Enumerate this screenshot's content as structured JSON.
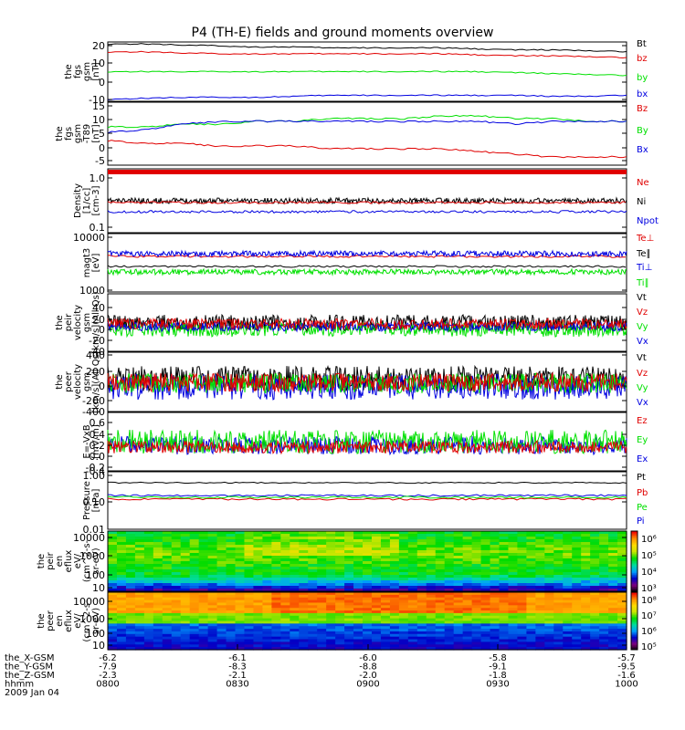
{
  "title": "P4 (TH-E) fields and ground moments overview",
  "colors": {
    "black": "#000000",
    "red": "#e00000",
    "green": "#00e000",
    "blue": "#0000e0"
  },
  "chart_data": [
    {
      "type": "line",
      "panel": "fgs_gsm",
      "ylabel": [
        "the",
        "fgs",
        "gsm",
        "[nT]"
      ],
      "ylim": [
        -10,
        20
      ],
      "yticks": [
        "20",
        "10",
        "0",
        "-10"
      ],
      "series": [
        {
          "name": "Bt",
          "color": "black",
          "values": [
            19,
            19,
            18.5,
            18,
            17.5,
            17.5,
            17,
            17,
            17,
            17,
            16.5,
            16,
            16,
            15.5,
            15
          ]
        },
        {
          "name": "bz",
          "color": "red",
          "values": [
            15,
            15,
            14.5,
            14,
            14,
            14,
            14,
            14,
            14,
            14,
            13.5,
            13,
            13,
            12.5,
            12
          ]
        },
        {
          "name": "by",
          "color": "green",
          "values": [
            5,
            5,
            5,
            5,
            5,
            5,
            5,
            5,
            5,
            5,
            5,
            4.5,
            4,
            3.5,
            3
          ]
        },
        {
          "name": "bx",
          "color": "blue",
          "values": [
            -9,
            -8.5,
            -8,
            -8,
            -8,
            -7.5,
            -7,
            -7,
            -7,
            -7,
            -7,
            -7,
            -7.5,
            -7.5,
            -7
          ]
        }
      ]
    },
    {
      "type": "line",
      "panel": "fgs_t89",
      "ylabel": [
        "the",
        "fgs",
        "gsm",
        "-T89",
        "[nT]"
      ],
      "ylim": [
        -7,
        16
      ],
      "yticks": [
        "15",
        "10",
        "5",
        "0",
        "-5"
      ],
      "series": [
        {
          "name": "Bz",
          "color": "red",
          "values": [
            2,
            1,
            1,
            0,
            0,
            0,
            -1,
            -1,
            -1,
            -1,
            -2,
            -3,
            -4,
            -4,
            -4
          ]
        },
        {
          "name": "By",
          "color": "green",
          "values": [
            7,
            7,
            8,
            8,
            9,
            9,
            10,
            10,
            10,
            11,
            11,
            10,
            10,
            9,
            9
          ]
        },
        {
          "name": "Bx",
          "color": "blue",
          "values": [
            5,
            6,
            8,
            9,
            9,
            9,
            9,
            9,
            9,
            9,
            9,
            8,
            9,
            9,
            9
          ]
        }
      ]
    },
    {
      "type": "line",
      "panel": "density",
      "ylabel": [
        "Density",
        "[1/cc]",
        "[cm-3]"
      ],
      "yticks": [
        "1.0",
        "0.1"
      ],
      "series": [
        {
          "name": "Ne",
          "color": "red"
        },
        {
          "name": "Ni",
          "color": "black"
        },
        {
          "name": "Npot",
          "color": "blue"
        }
      ]
    },
    {
      "type": "line",
      "panel": "temperature",
      "ylabel": [
        "magt3",
        "[eV]"
      ],
      "yticks": [
        "10000",
        "1000"
      ],
      "series": [
        {
          "name": "Te⊥",
          "color": "red"
        },
        {
          "name": "Te∥",
          "color": "black"
        },
        {
          "name": "Ti⊥",
          "color": "blue"
        },
        {
          "name": "Ti∥",
          "color": "green"
        }
      ]
    },
    {
      "type": "line",
      "panel": "peir_velocity",
      "ylabel": [
        "the",
        "peir",
        "velocity",
        "gsm",
        "[km/s](All Qs)"
      ],
      "ylim": [
        -40,
        40
      ],
      "yticks": [
        "40",
        "20",
        "0",
        "-20",
        "-40"
      ],
      "series": [
        {
          "name": "Vt",
          "color": "black"
        },
        {
          "name": "Vz",
          "color": "red"
        },
        {
          "name": "Vy",
          "color": "green"
        },
        {
          "name": "Vx",
          "color": "blue"
        }
      ]
    },
    {
      "type": "line",
      "panel": "peer_velocity",
      "ylabel": [
        "the",
        "peer",
        "velocity",
        "gsm",
        "[km/s](All Qs)"
      ],
      "ylim": [
        -400,
        400
      ],
      "yticks": [
        "400",
        "200",
        "0",
        "-200",
        "-400"
      ],
      "series": [
        {
          "name": "Vt",
          "color": "black"
        },
        {
          "name": "Vz",
          "color": "red"
        },
        {
          "name": "Vy",
          "color": "green"
        },
        {
          "name": "Vx",
          "color": "blue"
        }
      ]
    },
    {
      "type": "line",
      "panel": "exb",
      "ylabel": [
        "E=-VxB",
        "[mV/m]"
      ],
      "ylim": [
        -0.4,
        0.6
      ],
      "yticks": [
        "0.6",
        "0.4",
        "0.2",
        "0.0",
        "-0.2",
        "-0.4"
      ],
      "series": [
        {
          "name": "Ez",
          "color": "red"
        },
        {
          "name": "Ey",
          "color": "green"
        },
        {
          "name": "Ex",
          "color": "blue"
        }
      ]
    },
    {
      "type": "line",
      "panel": "pressure",
      "ylabel": [
        "Pressure",
        "[nPa]"
      ],
      "yticks": [
        "1.00",
        "0.10",
        "0.01"
      ],
      "series": [
        {
          "name": "Pt",
          "color": "black"
        },
        {
          "name": "Pb",
          "color": "red"
        },
        {
          "name": "Pe",
          "color": "green"
        },
        {
          "name": "Pi",
          "color": "blue"
        }
      ]
    },
    {
      "type": "heatmap",
      "panel": "peir_spec",
      "ylabel": [
        "the",
        "peir",
        "en",
        "eflux",
        "eV/",
        "(cm^2-s-",
        "sr-eV)"
      ],
      "yticks": [
        "10000",
        "1000",
        "100",
        "10"
      ],
      "colorbar_ticks": [
        "10⁶",
        "10⁵",
        "10⁴",
        "10³"
      ]
    },
    {
      "type": "heatmap",
      "panel": "peer_spec",
      "ylabel": [
        "the",
        "peer",
        "en",
        "eflux",
        "eV/",
        "(cm^2-s-",
        "sr-eV)"
      ],
      "yticks": [
        "10000",
        "1000",
        "100",
        "10"
      ],
      "colorbar_ticks": [
        "10⁸",
        "10⁷",
        "10⁶",
        "10⁵"
      ]
    }
  ],
  "xaxis": {
    "rows": [
      {
        "label": "the_X-GSM",
        "values": [
          "-6.2",
          "-6.1",
          "-6.0",
          "-5.8",
          "-5.7"
        ]
      },
      {
        "label": "the_Y-GSM",
        "values": [
          "-7.9",
          "-8.3",
          "-8.8",
          "-9.1",
          "-9.5"
        ]
      },
      {
        "label": "the_Z-GSM",
        "values": [
          "-2.3",
          "-2.1",
          "-2.0",
          "-1.8",
          "-1.6"
        ]
      },
      {
        "label": "hhmm",
        "values": [
          "0800",
          "0830",
          "0900",
          "0930",
          "1000"
        ]
      }
    ],
    "date": "2009 Jan 04"
  }
}
